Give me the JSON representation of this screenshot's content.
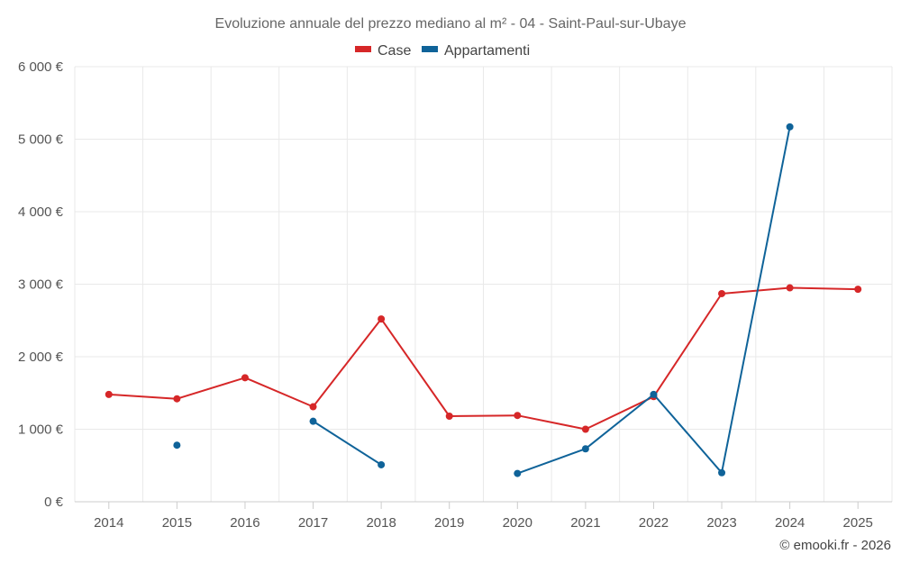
{
  "chart_data": {
    "type": "line",
    "title": "Evoluzione annuale del prezzo mediano al m² - 04 - Saint-Paul-sur-Ubaye",
    "categories": [
      "2014",
      "2015",
      "2016",
      "2017",
      "2018",
      "2019",
      "2020",
      "2021",
      "2022",
      "2023",
      "2024",
      "2025"
    ],
    "y_tick_labels": [
      "0 €",
      "1 000 €",
      "2 000 €",
      "3 000 €",
      "4 000 €",
      "5 000 €",
      "6 000 €"
    ],
    "ylim": [
      0,
      6000
    ],
    "legend_position": "top-center",
    "series": [
      {
        "name": "Case",
        "color": "#d62728",
        "values": [
          1480,
          1420,
          1710,
          1310,
          2520,
          1180,
          1190,
          1000,
          1450,
          2870,
          2950,
          2930
        ]
      },
      {
        "name": "Appartamenti",
        "color": "#0f6399",
        "values": [
          null,
          780,
          null,
          1110,
          510,
          null,
          390,
          730,
          1480,
          400,
          5170,
          null
        ]
      }
    ],
    "credit": "© emooki.fr - 2026"
  }
}
